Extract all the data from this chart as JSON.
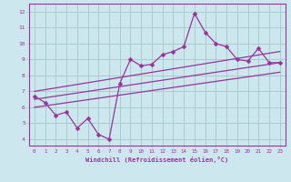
{
  "xlabel": "Windchill (Refroidissement éolien,°C)",
  "bg_color": "#cce8ee",
  "grid_color": "#aacccc",
  "line_color": "#993399",
  "spine_color": "#993399",
  "x_ticks": [
    0,
    1,
    2,
    3,
    4,
    5,
    6,
    7,
    8,
    9,
    10,
    11,
    12,
    13,
    14,
    15,
    16,
    17,
    18,
    19,
    20,
    21,
    22,
    23
  ],
  "y_ticks": [
    4,
    5,
    6,
    7,
    8,
    9,
    10,
    11,
    12
  ],
  "ylim": [
    3.6,
    12.5
  ],
  "xlim": [
    -0.5,
    23.5
  ],
  "series1_x": [
    0,
    1,
    2,
    3,
    4,
    5,
    6,
    7,
    8,
    9,
    10,
    11,
    12,
    13,
    14,
    15,
    16,
    17,
    18,
    19,
    20,
    21,
    22,
    23
  ],
  "series1_y": [
    6.7,
    6.3,
    5.5,
    5.7,
    4.7,
    5.3,
    4.3,
    4.0,
    7.5,
    9.0,
    8.6,
    8.7,
    9.3,
    9.5,
    9.8,
    11.9,
    10.7,
    10.0,
    9.8,
    9.0,
    8.9,
    9.7,
    8.8,
    8.8
  ],
  "series2_x": [
    0,
    23
  ],
  "series2_y": [
    6.5,
    8.8
  ],
  "series3_x": [
    0,
    23
  ],
  "series3_y": [
    7.0,
    9.5
  ],
  "series4_x": [
    0,
    23
  ],
  "series4_y": [
    6.0,
    8.2
  ]
}
